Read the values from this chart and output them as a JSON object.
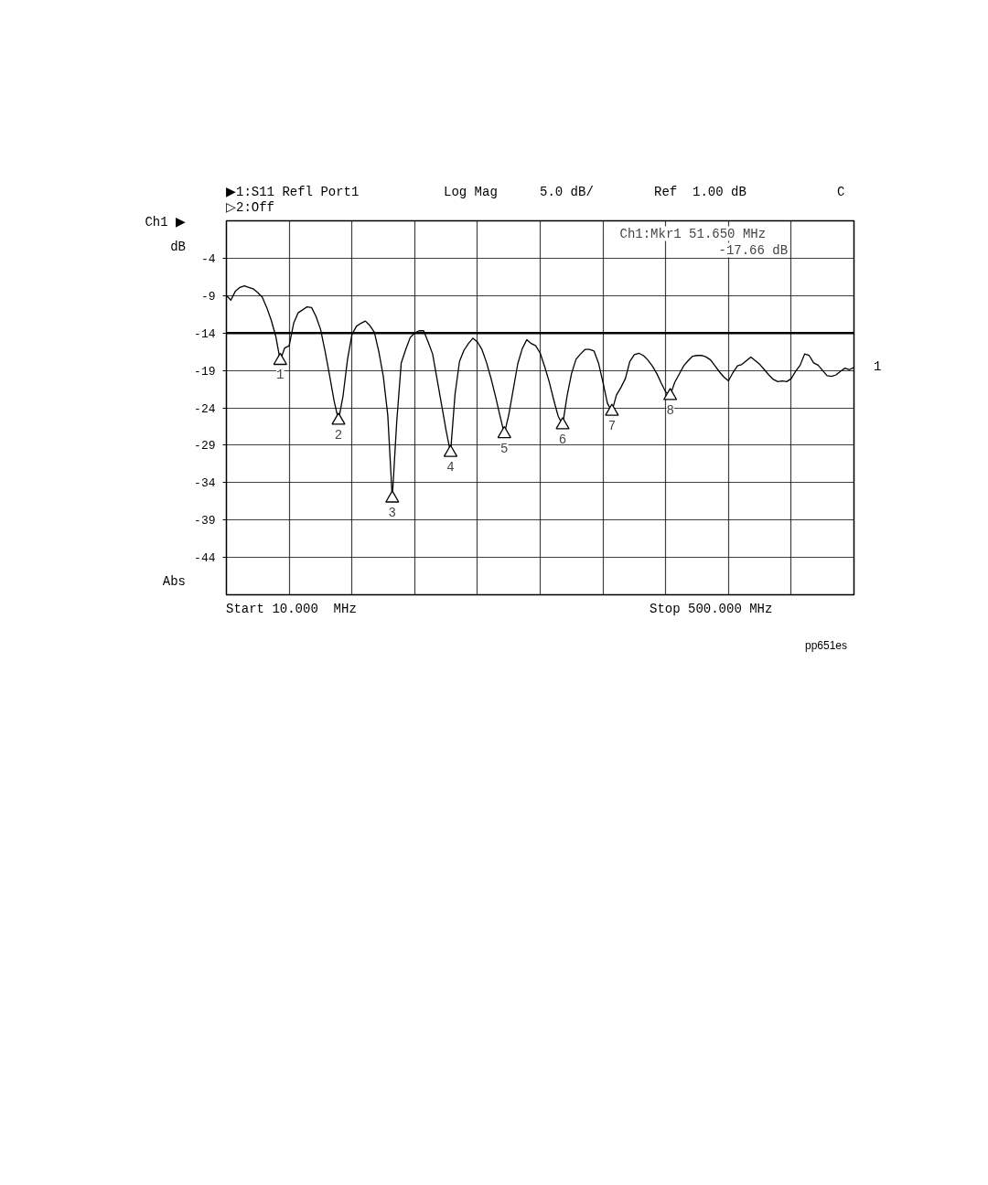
{
  "chart_data": {
    "type": "line",
    "ylabel": "dB",
    "categories": [
      null,
      null,
      null,
      null,
      null,
      null,
      null,
      null,
      null,
      null,
      null,
      null,
      null,
      null,
      null,
      null,
      null,
      null,
      null,
      null,
      null,
      null,
      null,
      null,
      null,
      null,
      null,
      null,
      null,
      null,
      null,
      null,
      null,
      null,
      null,
      null,
      null,
      null,
      null,
      null,
      null,
      null,
      null,
      null,
      null,
      null,
      null,
      null,
      null,
      null,
      null,
      null,
      null,
      null,
      null,
      null,
      null,
      null,
      null,
      null,
      null,
      null,
      null,
      null,
      null,
      null,
      null,
      null,
      null,
      null,
      null,
      null,
      null,
      null,
      null,
      null,
      null,
      null,
      null,
      null,
      null,
      null,
      null,
      null,
      null,
      null,
      null,
      null,
      null,
      null,
      null,
      null,
      null,
      null,
      null,
      null,
      null,
      null,
      null,
      null,
      null,
      null,
      null,
      null,
      null,
      null,
      null,
      null,
      null,
      null,
      null,
      null,
      null,
      null,
      null,
      null,
      null,
      null,
      null,
      null,
      null,
      null,
      null,
      null,
      null,
      null,
      null,
      null,
      null,
      null,
      null,
      null,
      null,
      null,
      null,
      null,
      null,
      null,
      null,
      null,
      null
    ],
    "series": [
      {
        "name": "1",
        "color": "#000000",
        "values": [
          -9.0,
          -9.6,
          -8.4,
          -7.9,
          -7.7,
          -7.9,
          -8.1,
          -8.6,
          -9.2,
          -10.6,
          -12.3,
          -14.4,
          -17.7,
          -16.0,
          -15.7,
          -12.7,
          -11.3,
          -10.9,
          -10.5,
          -10.6,
          -11.8,
          -13.5,
          -16.4,
          -19.6,
          -23.0,
          -25.7,
          -22.5,
          -17.6,
          -14.2,
          -13.1,
          -12.7,
          -12.4,
          -13.0,
          -13.9,
          -16.5,
          -19.8,
          -25.0,
          -36.1,
          -25.8,
          -18.0,
          -16.2,
          -14.6,
          -14.0,
          -13.7,
          -13.7,
          -15.2,
          -16.8,
          -20.2,
          -23.6,
          -27.0,
          -30.0,
          -22.2,
          -17.8,
          -16.3,
          -15.4,
          -14.7,
          -15.2,
          -16.2,
          -17.9,
          -20.0,
          -22.4,
          -25.0,
          -27.5,
          -24.9,
          -21.5,
          -18.1,
          -16.1,
          -14.9,
          -15.4,
          -15.7,
          -16.7,
          -18.5,
          -20.5,
          -22.9,
          -25.1,
          -26.3,
          -22.4,
          -19.4,
          -17.5,
          -16.8,
          -16.2,
          -16.2,
          -16.4,
          -18.0,
          -20.6,
          -23.4,
          -24.5,
          -22.3,
          -21.3,
          -20.1,
          -17.8,
          -16.9,
          -16.7,
          -17.0,
          -17.6,
          -18.4,
          -19.4,
          -20.7,
          -21.9,
          -22.4,
          -20.6,
          -19.5,
          -18.4,
          -17.7,
          -17.1,
          -17.0,
          -17.0,
          -17.2,
          -17.6,
          -18.4,
          -19.2,
          -19.9,
          -20.4,
          -19.3,
          -18.4,
          -18.2,
          -17.7,
          -17.2,
          -17.7,
          -18.2,
          -18.9,
          -19.6,
          -20.2,
          -20.5,
          -20.4,
          -20.5,
          -20.1,
          -19.1,
          -18.3,
          -16.8,
          -17.0,
          -18.0,
          -18.3,
          -19.0,
          -19.7,
          -19.8,
          -19.6,
          -19.1,
          -18.7,
          -18.9,
          -18.6
        ]
      },
      {
        "type": "scatter",
        "marker": "triangle",
        "color": "#000000",
        "values": [
          null,
          null,
          null,
          null,
          null,
          null,
          null,
          null,
          null,
          null,
          null,
          null,
          -17.7,
          null,
          null,
          null,
          null,
          null,
          null,
          null,
          null,
          null,
          null,
          null,
          null,
          -25.7,
          null,
          null,
          null,
          null,
          null,
          null,
          null,
          null,
          null,
          null,
          null,
          -36.1,
          null,
          null,
          null,
          null,
          null,
          null,
          null,
          null,
          null,
          null,
          null,
          null,
          -30.0,
          null,
          null,
          null,
          null,
          null,
          null,
          null,
          null,
          null,
          null,
          null,
          -27.5,
          null,
          null,
          null,
          null,
          null,
          null,
          null,
          null,
          null,
          null,
          null,
          null,
          -26.3,
          null,
          null,
          null,
          null,
          null,
          null,
          null,
          null,
          null,
          null,
          -24.5,
          null,
          null,
          null,
          null,
          null,
          null,
          null,
          null,
          null,
          null,
          null,
          null,
          -22.4,
          null,
          null,
          null,
          null,
          null,
          null,
          null,
          null,
          null,
          null,
          null,
          null,
          null,
          null,
          null,
          null,
          null,
          null,
          null,
          null,
          null,
          null,
          null,
          null,
          null,
          null,
          null,
          null,
          null,
          null,
          null,
          null,
          null,
          null,
          null,
          null,
          null,
          null,
          null,
          null,
          null
        ]
      }
    ],
    "ylim": [
      -49,
      1
    ],
    "yticks": [
      -44,
      -39,
      -34,
      -29,
      -24,
      -19,
      -14,
      -9,
      -4
    ],
    "tick_labels": "y",
    "grid": true,
    "ref_lines": [
      {
        "axis": "y",
        "value": -14
      }
    ],
    "annotations": [
      "▶1:S11 Refl Port1",
      "Log Mag",
      "5.0 dB/",
      "Ref  1.00 dB",
      "C",
      "▷2:Off",
      "Ch1 ▶",
      "Ch1:Mkr1  51.650 MHz",
      "-17.66 dB",
      "Abs",
      "Start 10.000  MHz",
      "Stop 500.000 MHz",
      "pp651es",
      "1",
      "2",
      "3",
      "4",
      "5",
      "6",
      "7",
      "8"
    ]
  }
}
